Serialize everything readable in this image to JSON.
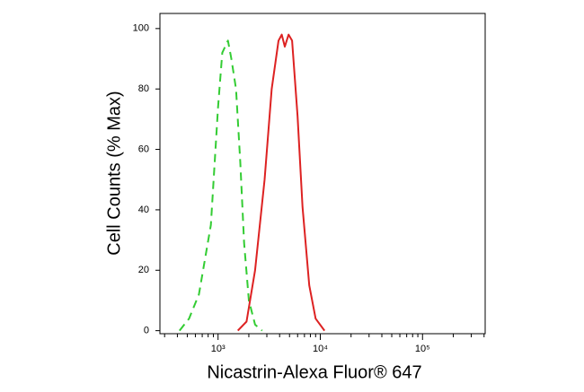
{
  "chart_data": {
    "type": "line",
    "x_label": "Nicastrin-Alexa Fluor® 647",
    "y_label": "Cell Counts (% Max)",
    "xscale": "log",
    "xlim": [
      270,
      410000
    ],
    "ylim": [
      -1,
      105
    ],
    "xticks": [
      {
        "value": 1000,
        "label": "10³"
      },
      {
        "value": 10000,
        "label": "10⁴"
      },
      {
        "value": 100000,
        "label": "10⁵"
      }
    ],
    "xminorticks": [
      300,
      400,
      500,
      600,
      700,
      800,
      900,
      2000,
      3000,
      4000,
      5000,
      6000,
      7000,
      8000,
      9000,
      20000,
      30000,
      40000,
      50000,
      60000,
      70000,
      80000,
      90000,
      200000,
      300000,
      400000
    ],
    "yticks": [
      0,
      20,
      40,
      60,
      80,
      100
    ],
    "series": [
      {
        "color": "#33cc33",
        "dashed": true,
        "x": [
          420,
          520,
          650,
          850,
          1000,
          1100,
          1250,
          1350,
          1500,
          1650,
          1800,
          2000,
          2300,
          2700
        ],
        "values": [
          0,
          4,
          12,
          35,
          74,
          92,
          96,
          90,
          80,
          56,
          29,
          10,
          2,
          0
        ]
      },
      {
        "color": "#dd2222",
        "dashed": false,
        "x": [
          1560,
          1900,
          2300,
          2850,
          3350,
          3900,
          4200,
          4500,
          4900,
          5300,
          6000,
          6700,
          7800,
          9000,
          11000
        ],
        "values": [
          0,
          3,
          20,
          50,
          80,
          96,
          98,
          94,
          98,
          96,
          71,
          41,
          15,
          4,
          0
        ]
      }
    ]
  }
}
